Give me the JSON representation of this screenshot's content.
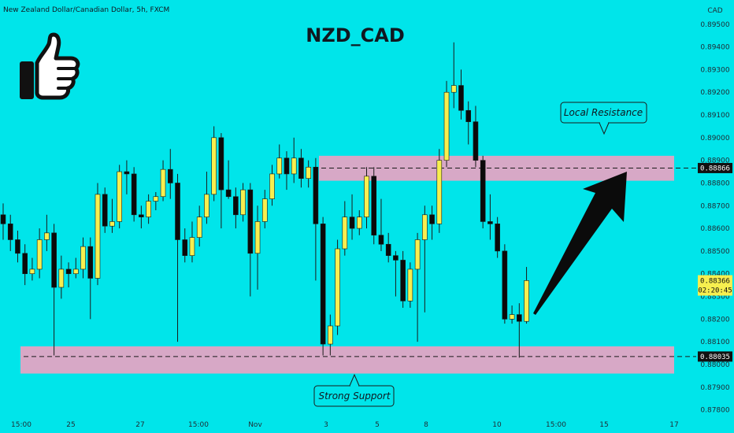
{
  "header": {
    "symbol_line": "New Zealand Dollar/Canadian Dollar, 5h, FXCM"
  },
  "title": "NZD_CAD",
  "chart_data": {
    "type": "candlestick",
    "title": "NZD_CAD",
    "currency": "CAD",
    "y_axis_ticks": [
      "0.87800",
      "0.87900",
      "0.88000",
      "0.88100",
      "0.88200",
      "0.88300",
      "0.88400",
      "0.88500",
      "0.88600",
      "0.88700",
      "0.88800",
      "0.88900",
      "0.89000",
      "0.89100",
      "0.89200",
      "0.89300",
      "0.89400",
      "0.89500"
    ],
    "ylim": [
      0.8775,
      0.8952
    ],
    "x_axis_ticks": [
      "15:00",
      "25",
      "27",
      "15:00",
      "Nov",
      "3",
      "5",
      "8",
      "10",
      "15:00",
      "15",
      "17"
    ],
    "levels": {
      "resistance": {
        "price": 0.88866,
        "label": "0.88866"
      },
      "support": {
        "price": 0.88035,
        "label": "0.88035"
      }
    },
    "last_price": {
      "price": 0.88366,
      "label": "0.88366",
      "countdown": "02:20:45"
    },
    "zones": [
      {
        "name": "Local Resistance",
        "low": 0.8881,
        "high": 0.8892
      },
      {
        "name": "Strong Support",
        "low": 0.8796,
        "high": 0.8808
      }
    ],
    "annotations": {
      "resistance_label": "Local Resistance",
      "support_label": "Strong Support"
    },
    "candles": [
      [
        0.8866,
        0.8862,
        0.8871,
        0.8855
      ],
      [
        0.8862,
        0.8855,
        0.8866,
        0.885
      ],
      [
        0.8855,
        0.8849,
        0.8859,
        0.8845
      ],
      [
        0.8849,
        0.884,
        0.8853,
        0.8835
      ],
      [
        0.884,
        0.8842,
        0.8847,
        0.8837
      ],
      [
        0.8842,
        0.8855,
        0.886,
        0.8838
      ],
      [
        0.8855,
        0.8858,
        0.8866,
        0.885
      ],
      [
        0.8858,
        0.8834,
        0.8862,
        0.8804
      ],
      [
        0.8834,
        0.8842,
        0.8848,
        0.8829
      ],
      [
        0.8842,
        0.884,
        0.8845,
        0.8834
      ],
      [
        0.884,
        0.8842,
        0.8847,
        0.8838
      ],
      [
        0.8842,
        0.8852,
        0.8856,
        0.8838
      ],
      [
        0.8852,
        0.8838,
        0.8856,
        0.882
      ],
      [
        0.8838,
        0.8875,
        0.888,
        0.8835
      ],
      [
        0.8875,
        0.8861,
        0.8878,
        0.8858
      ],
      [
        0.8861,
        0.8863,
        0.8873,
        0.8858
      ],
      [
        0.8863,
        0.8885,
        0.8888,
        0.886
      ],
      [
        0.8885,
        0.8884,
        0.889,
        0.8875
      ],
      [
        0.8884,
        0.8866,
        0.8887,
        0.8863
      ],
      [
        0.8866,
        0.8865,
        0.887,
        0.886
      ],
      [
        0.8865,
        0.8872,
        0.8875,
        0.8862
      ],
      [
        0.8872,
        0.8874,
        0.8876,
        0.8868
      ],
      [
        0.8874,
        0.8886,
        0.889,
        0.8872
      ],
      [
        0.8886,
        0.888,
        0.8895,
        0.8873
      ],
      [
        0.888,
        0.8855,
        0.8884,
        0.881
      ],
      [
        0.8855,
        0.8848,
        0.886,
        0.8845
      ],
      [
        0.8848,
        0.8856,
        0.8863,
        0.8845
      ],
      [
        0.8856,
        0.8865,
        0.887,
        0.8852
      ],
      [
        0.8865,
        0.8875,
        0.8885,
        0.8862
      ],
      [
        0.8875,
        0.89,
        0.8905,
        0.8872
      ],
      [
        0.89,
        0.8877,
        0.8902,
        0.886
      ],
      [
        0.8877,
        0.8874,
        0.889,
        0.8873
      ],
      [
        0.8874,
        0.8866,
        0.8878,
        0.886
      ],
      [
        0.8866,
        0.8877,
        0.888,
        0.8863
      ],
      [
        0.8877,
        0.8849,
        0.888,
        0.883
      ],
      [
        0.8849,
        0.8863,
        0.887,
        0.8833
      ],
      [
        0.8863,
        0.8873,
        0.8877,
        0.886
      ],
      [
        0.8873,
        0.8884,
        0.8888,
        0.887
      ],
      [
        0.8884,
        0.8891,
        0.8897,
        0.8882
      ],
      [
        0.8891,
        0.8884,
        0.8894,
        0.8877
      ],
      [
        0.8884,
        0.8891,
        0.89,
        0.888
      ],
      [
        0.8891,
        0.8882,
        0.8895,
        0.8878
      ],
      [
        0.8882,
        0.8887,
        0.889,
        0.8878
      ],
      [
        0.8887,
        0.8862,
        0.8891,
        0.8837
      ],
      [
        0.8862,
        0.8809,
        0.8865,
        0.8804
      ],
      [
        0.8809,
        0.8817,
        0.8822,
        0.8804
      ],
      [
        0.8817,
        0.8851,
        0.8855,
        0.8813
      ],
      [
        0.8851,
        0.8865,
        0.8872,
        0.8848
      ],
      [
        0.8865,
        0.886,
        0.8875,
        0.8855
      ],
      [
        0.886,
        0.8865,
        0.8868,
        0.8857
      ],
      [
        0.8865,
        0.8883,
        0.8887,
        0.886
      ],
      [
        0.8883,
        0.8857,
        0.8887,
        0.8853
      ],
      [
        0.8857,
        0.8853,
        0.8873,
        0.885
      ],
      [
        0.8853,
        0.8848,
        0.8858,
        0.8845
      ],
      [
        0.8848,
        0.8846,
        0.885,
        0.883
      ],
      [
        0.8846,
        0.8828,
        0.885,
        0.8825
      ],
      [
        0.8828,
        0.8842,
        0.8845,
        0.8825
      ],
      [
        0.8842,
        0.8855,
        0.8858,
        0.881
      ],
      [
        0.8855,
        0.8866,
        0.887,
        0.8823
      ],
      [
        0.8866,
        0.8862,
        0.887,
        0.8855
      ],
      [
        0.8862,
        0.889,
        0.8895,
        0.8858
      ],
      [
        0.889,
        0.892,
        0.8925,
        0.8887
      ],
      [
        0.892,
        0.8923,
        0.8942,
        0.8913
      ],
      [
        0.8923,
        0.8912,
        0.893,
        0.8908
      ],
      [
        0.8912,
        0.8907,
        0.8916,
        0.8897
      ],
      [
        0.8907,
        0.889,
        0.8914,
        0.8887
      ],
      [
        0.889,
        0.8863,
        0.8892,
        0.886
      ],
      [
        0.8863,
        0.8862,
        0.8875,
        0.8855
      ],
      [
        0.8862,
        0.885,
        0.8865,
        0.8847
      ],
      [
        0.885,
        0.882,
        0.8853,
        0.8818
      ],
      [
        0.882,
        0.8822,
        0.8826,
        0.8818
      ],
      [
        0.8822,
        0.8819,
        0.8827,
        0.8803
      ],
      [
        0.8819,
        0.8837,
        0.8843,
        0.8818
      ]
    ]
  }
}
